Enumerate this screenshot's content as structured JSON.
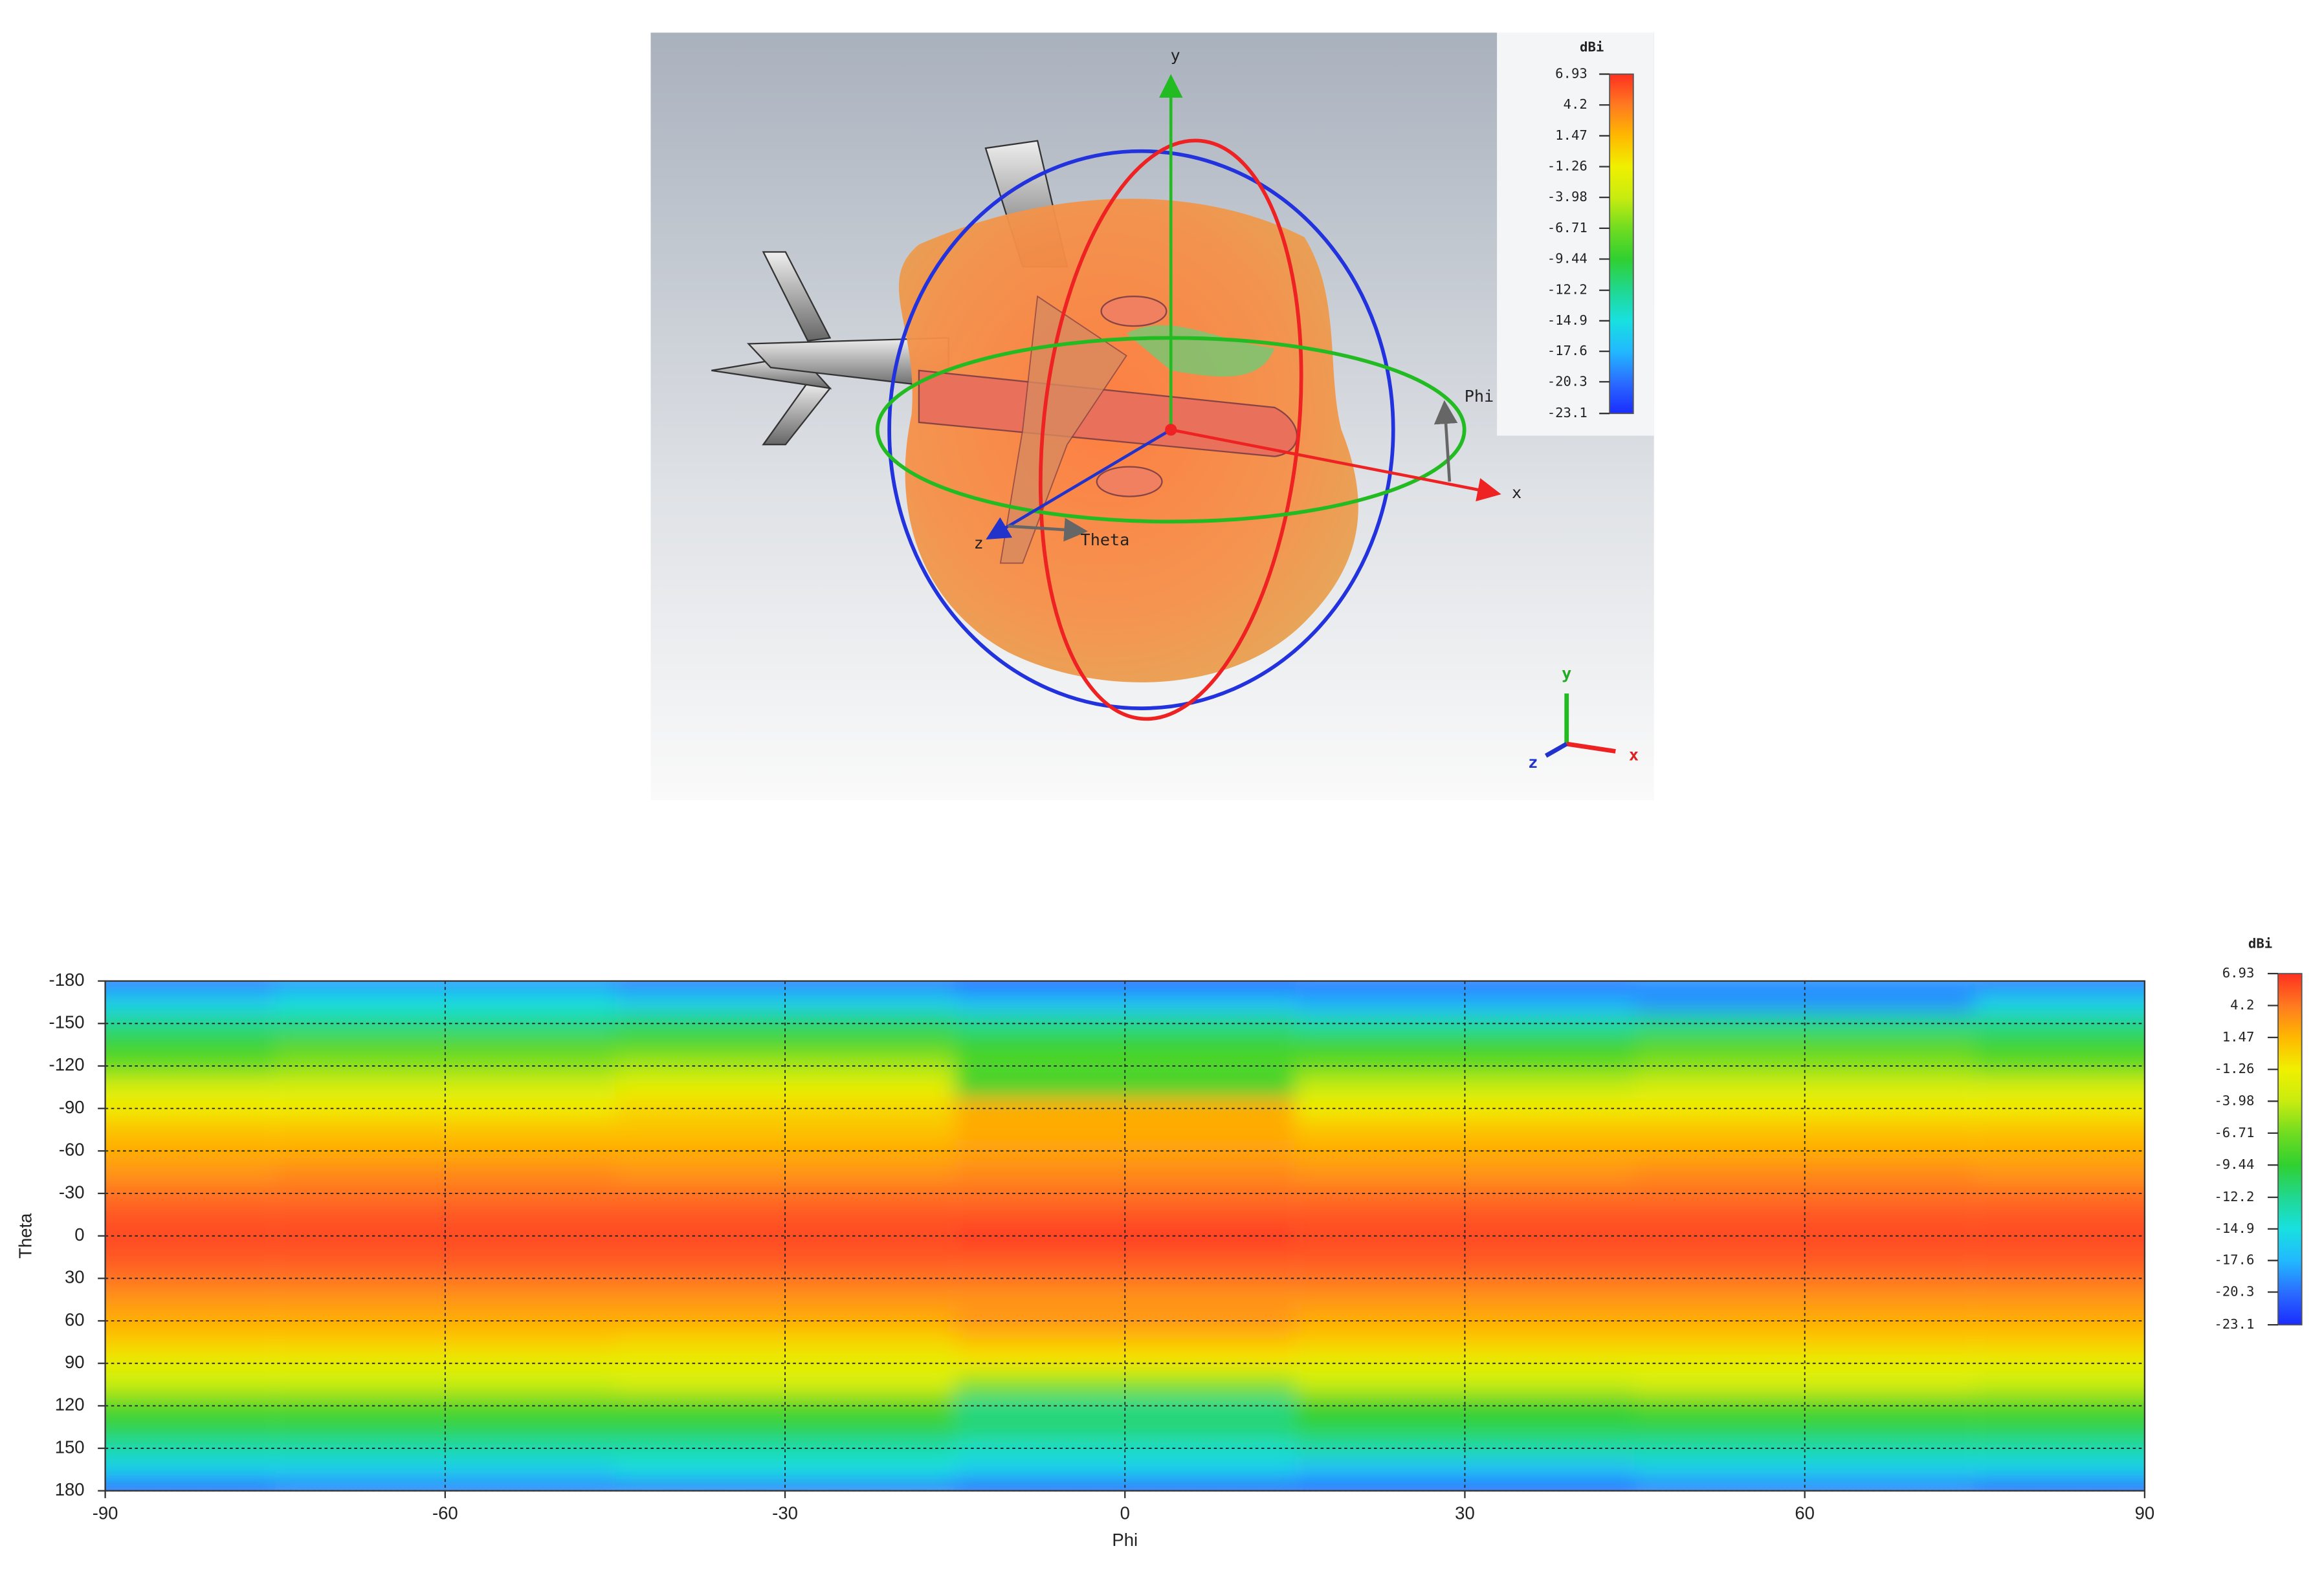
{
  "view3d": {
    "axis_labels": {
      "y": "y",
      "x": "x",
      "z": "z",
      "phi": "Phi",
      "theta": "Theta"
    },
    "triad": {
      "y": "y",
      "x": "x",
      "z": "z"
    }
  },
  "chart_data": {
    "type": "heatmap",
    "x_label": "Phi",
    "y_label": "Theta",
    "x": [
      -90,
      -60,
      -30,
      0,
      30,
      60,
      90
    ],
    "y": [
      -180,
      -165,
      -150,
      -135,
      -120,
      -105,
      -90,
      -75,
      -60,
      -45,
      -30,
      -15,
      0,
      15,
      30,
      45,
      60,
      75,
      90,
      105,
      120,
      135,
      150,
      165,
      180
    ],
    "values": [
      [
        -20,
        -19,
        -20,
        -21,
        -20,
        -19,
        -20
      ],
      [
        -16,
        -15,
        -16,
        -17,
        -18,
        -19,
        -16
      ],
      [
        -12,
        -12,
        -11,
        -12,
        -13,
        -12,
        -12
      ],
      [
        -9,
        -8,
        -8,
        -9,
        -9,
        -8,
        -9
      ],
      [
        -7,
        -6,
        -5,
        -8,
        -7,
        -6,
        -7
      ],
      [
        -3,
        -3,
        -2,
        -9,
        -4,
        -3,
        -3
      ],
      [
        -1,
        -1,
        0,
        2,
        -1,
        -1,
        -1
      ],
      [
        1,
        1,
        1,
        2,
        1,
        1,
        1
      ],
      [
        2,
        2,
        2,
        2.5,
        2,
        2,
        2
      ],
      [
        3,
        3.5,
        3,
        3.5,
        3,
        3.5,
        3
      ],
      [
        4.5,
        4.5,
        4.5,
        4.5,
        4.5,
        4.5,
        4.5
      ],
      [
        5.5,
        5.5,
        5.5,
        5.5,
        5.5,
        5.5,
        5.5
      ],
      [
        6,
        6,
        6,
        6.5,
        6,
        6,
        6
      ],
      [
        5.5,
        5.5,
        5.5,
        5.5,
        5.5,
        5.5,
        5.5
      ],
      [
        4.5,
        4.5,
        4.5,
        4.5,
        4.5,
        4.5,
        4.5
      ],
      [
        3,
        3,
        3,
        3,
        3,
        3,
        3
      ],
      [
        2,
        2,
        2,
        3,
        2,
        2,
        2
      ],
      [
        0.5,
        0.5,
        0,
        1,
        0.5,
        0.5,
        0.5
      ],
      [
        -2,
        -2,
        -2,
        -1,
        -2,
        -2,
        -2
      ],
      [
        -4,
        -4,
        -3,
        -6,
        -4,
        -3,
        -4
      ],
      [
        -8,
        -8,
        -8,
        -12,
        -9,
        -8,
        -8
      ],
      [
        -10,
        -10,
        -10,
        -11,
        -10,
        -10,
        -10
      ],
      [
        -13,
        -13,
        -13,
        -14,
        -13,
        -13,
        -13
      ],
      [
        -16,
        -16,
        -15,
        -16,
        -17,
        -16,
        -16
      ],
      [
        -21,
        -20,
        -20,
        -21,
        -21,
        -20,
        -21
      ]
    ],
    "xlim": [
      -90,
      90
    ],
    "ylim": [
      -180,
      180
    ],
    "y_inverted": true,
    "xticks": [
      -90,
      -60,
      -30,
      0,
      30,
      60,
      90
    ],
    "yticks": [
      -180,
      -150,
      -120,
      -90,
      -60,
      -30,
      0,
      30,
      60,
      90,
      120,
      150,
      180
    ],
    "grid": true,
    "colorbar": {
      "title": "dBi",
      "clim": [
        -23.1,
        6.93
      ],
      "ticks": [
        6.93,
        4.2,
        1.47,
        -1.26,
        -3.98,
        -6.71,
        -9.44,
        -12.2,
        -14.9,
        -17.6,
        -20.3,
        -23.1
      ],
      "colors": [
        "#1a2cff",
        "#2a6cff",
        "#22b8ff",
        "#18e0e0",
        "#20d890",
        "#30d030",
        "#70dc20",
        "#c8ec10",
        "#f0f000",
        "#ffb800",
        "#ff7a20",
        "#ff3020"
      ]
    }
  }
}
